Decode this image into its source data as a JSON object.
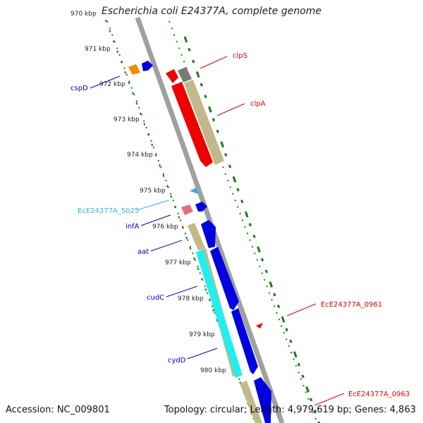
{
  "title": "Escherichia coli E24377A, complete genome",
  "footer": {
    "accession": "Accession: NC_009801",
    "summary": "Topology: circular; Length: 4,979,619 bp; Genes: 4,863"
  },
  "kbp_ticks": [
    "970 kbp",
    "971 kbp",
    "972 kbp",
    "973 kbp",
    "974 kbp",
    "975 kbp",
    "976 kbp",
    "977 kbp",
    "978 kbp",
    "979 kbp",
    "980 kbp"
  ],
  "gene_labels": [
    {
      "text": "clpS",
      "color": "#e00000"
    },
    {
      "text": "clpA",
      "color": "#e00000"
    },
    {
      "text": "cspD",
      "color": "#0000c0"
    },
    {
      "text": "EcE24377A_5025",
      "color": "#29b6f6"
    },
    {
      "text": "infA",
      "color": "#0000c0"
    },
    {
      "text": "aat",
      "color": "#0000c0"
    },
    {
      "text": "cudC",
      "color": "#0000c0"
    },
    {
      "text": "cydD",
      "color": "#0000c0"
    },
    {
      "text": "EcE24377A_0961",
      "color": "#e00000"
    },
    {
      "text": "EcE24377A_0963",
      "color": "#e00000"
    }
  ],
  "colors": {
    "backbone": "#a0a0a0",
    "gc_dots": "#1a7a1a",
    "cds_forward": "#0000e0",
    "cds_reverse": "#ee0000",
    "gene_tan": "#c2b98a",
    "cyan_gene": "#22eeee",
    "orange_gene": "#f08c00",
    "grey_gene": "#7a7a7a",
    "pink_gene": "#e07080",
    "light_blue_gene": "#33aaff"
  }
}
